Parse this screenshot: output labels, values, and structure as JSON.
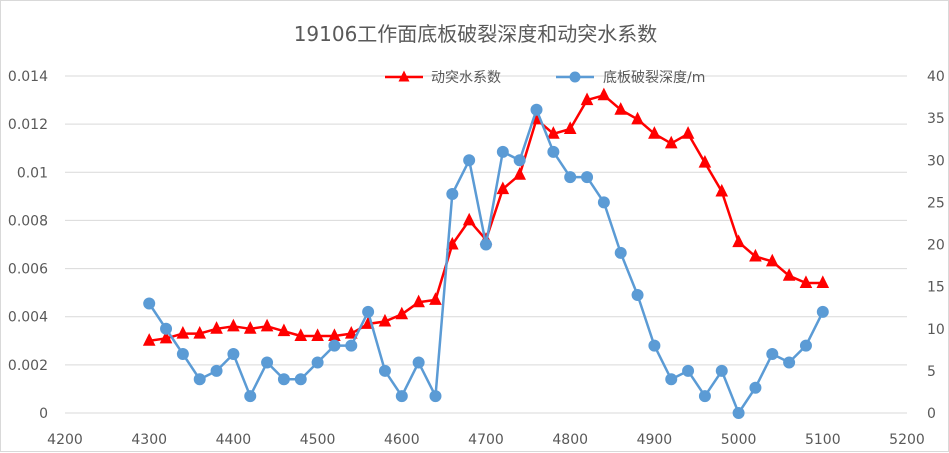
{
  "chart_data": {
    "type": "line",
    "title": "19106工作面底板破裂深度和动突水系数",
    "xlabel": "",
    "ylabel": "",
    "y2label": "",
    "xlim": [
      4200,
      5200
    ],
    "ylim": [
      0,
      0.014
    ],
    "y2lim": [
      0,
      40
    ],
    "x_ticks": [
      4200,
      4300,
      4400,
      4500,
      4600,
      4700,
      4800,
      4900,
      5000,
      5100,
      5200
    ],
    "y_ticks": [
      "0",
      "0.002",
      "0.004",
      "0.006",
      "0.008",
      "0.01",
      "0.012",
      "0.014"
    ],
    "y2_ticks": [
      "0",
      "5",
      "10",
      "15",
      "20",
      "25",
      "30",
      "35",
      "40"
    ],
    "grid": "horizontal",
    "legend_position": "top",
    "series": [
      {
        "name": "动突水系数",
        "axis": "left",
        "color": "#ff0000",
        "marker": "triangle",
        "x": [
          4300,
          4320,
          4340,
          4360,
          4380,
          4400,
          4420,
          4440,
          4460,
          4480,
          4500,
          4520,
          4540,
          4560,
          4580,
          4600,
          4620,
          4640,
          4660,
          4680,
          4700,
          4720,
          4740,
          4760,
          4780,
          4800,
          4820,
          4840,
          4860,
          4880,
          4900,
          4920,
          4940,
          4960,
          4980,
          5000,
          5020,
          5040,
          5060,
          5080,
          5100
        ],
        "values": [
          0.003,
          0.0031,
          0.0033,
          0.0033,
          0.0035,
          0.0036,
          0.0035,
          0.0036,
          0.0034,
          0.0032,
          0.0032,
          0.0032,
          0.0033,
          0.0037,
          0.0038,
          0.0041,
          0.0046,
          0.0047,
          0.007,
          0.008,
          0.0072,
          0.0093,
          0.0099,
          0.0122,
          0.0116,
          0.0118,
          0.013,
          0.0132,
          0.0126,
          0.0122,
          0.0116,
          0.0112,
          0.0116,
          0.0104,
          0.0092,
          0.0071,
          0.0065,
          0.0063,
          0.0057,
          0.0054,
          0.0054
        ]
      },
      {
        "name": "底板破裂深度/m",
        "axis": "right",
        "color": "#5b9bd5",
        "marker": "circle",
        "x": [
          4300,
          4320,
          4340,
          4360,
          4380,
          4400,
          4420,
          4440,
          4460,
          4480,
          4500,
          4520,
          4540,
          4560,
          4580,
          4600,
          4620,
          4640,
          4660,
          4680,
          4700,
          4720,
          4740,
          4760,
          4780,
          4800,
          4820,
          4840,
          4860,
          4880,
          4900,
          4920,
          4940,
          4960,
          4980,
          5000,
          5020,
          5040,
          5060,
          5080,
          5100
        ],
        "values": [
          13,
          10,
          7,
          4,
          5,
          7,
          2,
          6,
          4,
          4,
          6,
          8,
          8,
          12,
          5,
          2,
          6,
          2,
          26,
          30,
          20,
          31,
          30,
          36,
          31,
          28,
          28,
          25,
          19,
          14,
          8,
          4,
          5,
          2,
          5,
          0,
          3,
          7,
          6,
          8,
          12
        ]
      }
    ]
  }
}
